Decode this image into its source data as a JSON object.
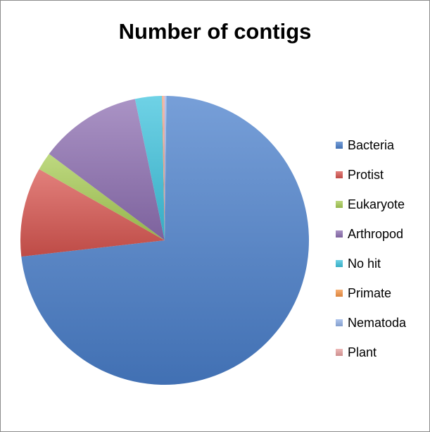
{
  "chart_data": {
    "type": "pie",
    "title": "Number of contigs",
    "legend_position": "right",
    "slices": [
      {
        "label": "Bacteria",
        "value": 73.0,
        "color": "#4a7fcb"
      },
      {
        "label": "Protist",
        "value": 10.0,
        "color": "#d85550"
      },
      {
        "label": "Eukaryote",
        "value": 2.0,
        "color": "#a8cc55"
      },
      {
        "label": "Arthropod",
        "value": 11.5,
        "color": "#8e6fb2"
      },
      {
        "label": "No hit",
        "value": 3.0,
        "color": "#3fc3de"
      },
      {
        "label": "Primate",
        "value": 0.1,
        "color": "#f79646"
      },
      {
        "label": "Nematoda",
        "value": 0.2,
        "color": "#95b3e8"
      },
      {
        "label": "Plant",
        "value": 0.2,
        "color": "#e8a1a0"
      }
    ],
    "legend_order": [
      "Bacteria",
      "Protist",
      "Eukaryote",
      "Arthropod",
      "No hit",
      "Primate",
      "Nematoda",
      "Plant"
    ]
  }
}
